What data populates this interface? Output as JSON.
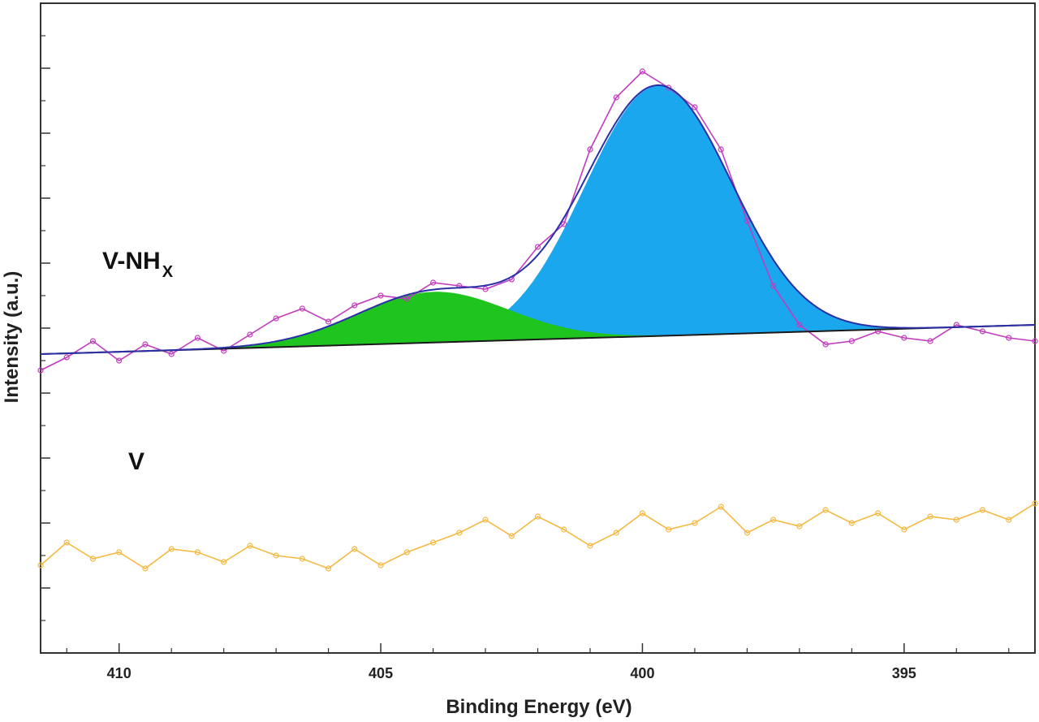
{
  "chart_data": {
    "type": "line",
    "title": "",
    "xlabel": "Binding Energy (eV)",
    "ylabel": "Intensity (a.u.)",
    "x_reversed": true,
    "xlim": [
      411.5,
      392.5
    ],
    "ylim": [
      0,
      100
    ],
    "x_ticks": [
      410,
      405,
      400,
      395
    ],
    "x_tick_labels": [
      "410",
      "405",
      "400",
      "395"
    ],
    "y_tick_labels_shown": false,
    "grid": false,
    "legend": "none",
    "annotations": [
      {
        "text": "V-NH",
        "subscript": "X",
        "x": 409.5,
        "y": 59.5
      },
      {
        "text": "V",
        "x": 408.6,
        "y": 28.6
      }
    ],
    "colors": {
      "v_nhx_data": "#c23bbf",
      "v_data": "#f5b942",
      "fit_envelope": "#2b2fa8",
      "peak_low_fill": "#1aa7ee",
      "peak_high_fill": "#1fc41f",
      "baseline": "#1a1a1a",
      "axis": "#333333"
    },
    "baseline": {
      "x": [
        411.5,
        392.5
      ],
      "y": [
        46.0,
        50.5
      ]
    },
    "peaks": [
      {
        "center": 399.7,
        "height": 38.5,
        "fwhm": 3.3,
        "fill": "#1aa7ee"
      },
      {
        "center": 404.0,
        "height": 7.8,
        "fwhm": 3.4,
        "fill": "#1fc41f"
      }
    ],
    "series": [
      {
        "name": "V-NHX",
        "x": [
          411.5,
          411.0,
          410.5,
          410.0,
          409.5,
          409.0,
          408.5,
          408.0,
          407.5,
          407.0,
          406.5,
          406.0,
          405.5,
          405.0,
          404.5,
          404.0,
          403.5,
          403.0,
          402.5,
          402.0,
          401.5,
          401.0,
          400.5,
          400.0,
          399.5,
          399.0,
          398.5,
          398.0,
          397.5,
          397.0,
          396.5,
          396.0,
          395.5,
          395.0,
          394.5,
          394.0,
          393.5,
          393.0,
          392.5
        ],
        "y": [
          43.5,
          45.5,
          48.0,
          45.0,
          47.5,
          46.0,
          48.5,
          46.5,
          49.0,
          51.5,
          53.0,
          51.0,
          53.5,
          55.0,
          54.5,
          57.0,
          56.5,
          56.0,
          57.5,
          62.5,
          66.0,
          77.5,
          85.5,
          89.5,
          87.0,
          84.0,
          77.5,
          66.5,
          56.5,
          50.5,
          47.5,
          48.0,
          49.5,
          48.5,
          48.0,
          50.5,
          49.5,
          48.5,
          48.0
        ]
      },
      {
        "name": "V",
        "x": [
          411.5,
          411.0,
          410.5,
          410.0,
          409.5,
          409.0,
          408.5,
          408.0,
          407.5,
          407.0,
          406.5,
          406.0,
          405.5,
          405.0,
          404.5,
          404.0,
          403.5,
          403.0,
          402.5,
          402.0,
          401.5,
          401.0,
          400.5,
          400.0,
          399.5,
          399.0,
          398.5,
          398.0,
          397.5,
          397.0,
          396.5,
          396.0,
          395.5,
          395.0,
          394.5,
          394.0,
          393.5,
          393.0,
          392.5
        ],
        "y": [
          13.5,
          17.0,
          14.5,
          15.5,
          13.0,
          16.0,
          15.5,
          14.0,
          16.5,
          15.0,
          14.5,
          13.0,
          16.0,
          13.5,
          15.5,
          17.0,
          18.5,
          20.5,
          18.0,
          21.0,
          19.0,
          16.5,
          18.5,
          21.5,
          19.0,
          20.0,
          22.5,
          18.5,
          20.5,
          19.5,
          22.0,
          20.0,
          21.5,
          19.0,
          21.0,
          20.5,
          22.0,
          20.5,
          23.0
        ]
      }
    ]
  }
}
